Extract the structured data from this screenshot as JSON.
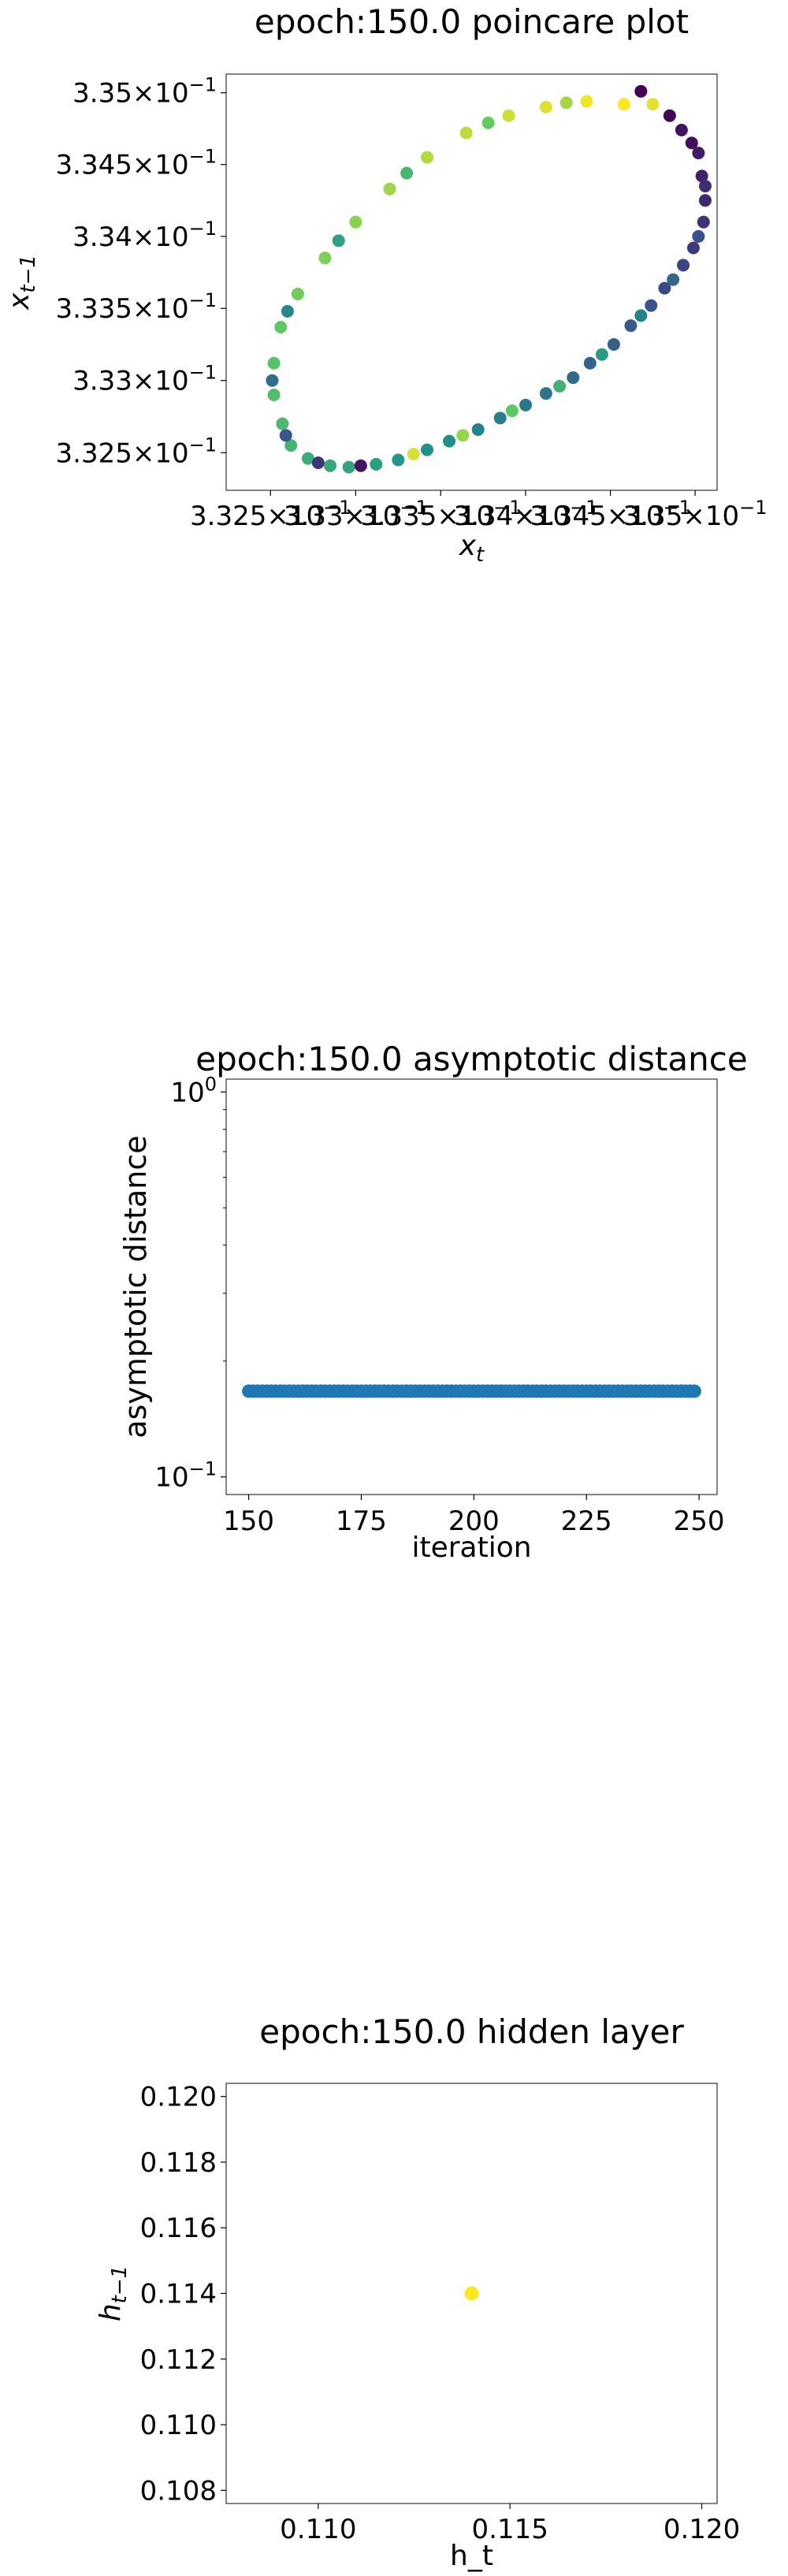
{
  "chart_data": [
    {
      "type": "scatter",
      "title": "epoch:150.0 poincare plot",
      "xlabel": "x",
      "xlabel_sub": "t",
      "ylabel": "x",
      "ylabel_sub": "t−1",
      "xscale": "log",
      "yscale": "log",
      "xlim": [
        0.33224,
        0.33513
      ],
      "ylim": [
        0.33224,
        0.33513
      ],
      "xticks": [
        {
          "value": 0.3325,
          "mant": "3.325",
          "exp": "−1"
        },
        {
          "value": 0.333,
          "mant": "3.33",
          "exp": "−1"
        },
        {
          "value": 0.3335,
          "mant": "3.335",
          "exp": "−1"
        },
        {
          "value": 0.334,
          "mant": "3.34",
          "exp": "−1"
        },
        {
          "value": 0.3345,
          "mant": "3.345",
          "exp": "−1"
        },
        {
          "value": 0.335,
          "mant": "3.35",
          "exp": "−1"
        }
      ],
      "yticks": [
        {
          "value": 0.3325,
          "mant": "3.325",
          "exp": "−1"
        },
        {
          "value": 0.333,
          "mant": "3.33",
          "exp": "−1"
        },
        {
          "value": 0.3335,
          "mant": "3.335",
          "exp": "−1"
        },
        {
          "value": 0.334,
          "mant": "3.34",
          "exp": "−1"
        },
        {
          "value": 0.3345,
          "mant": "3.345",
          "exp": "−1"
        },
        {
          "value": 0.335,
          "mant": "3.35",
          "exp": "−1"
        }
      ],
      "tick_times_sign": "×",
      "tick_base": "10",
      "colormap": "viridis",
      "points": [
        {
          "x": 0.33468,
          "y": 0.33501,
          "c": 0.0
        },
        {
          "x": 0.33492,
          "y": 0.33474,
          "c": 0.05
        },
        {
          "x": 0.33504,
          "y": 0.33442,
          "c": 0.1
        },
        {
          "x": 0.33505,
          "y": 0.3341,
          "c": 0.15
        },
        {
          "x": 0.33493,
          "y": 0.3338,
          "c": 0.2
        },
        {
          "x": 0.33474,
          "y": 0.33352,
          "c": 0.25
        },
        {
          "x": 0.33452,
          "y": 0.33325,
          "c": 0.3
        },
        {
          "x": 0.33428,
          "y": 0.33302,
          "c": 0.35
        },
        {
          "x": 0.334,
          "y": 0.33283,
          "c": 0.4
        },
        {
          "x": 0.33372,
          "y": 0.33266,
          "c": 0.45
        },
        {
          "x": 0.33342,
          "y": 0.33252,
          "c": 0.5
        },
        {
          "x": 0.33312,
          "y": 0.33242,
          "c": 0.55
        },
        {
          "x": 0.33285,
          "y": 0.33241,
          "c": 0.6
        },
        {
          "x": 0.33262,
          "y": 0.33255,
          "c": 0.65
        },
        {
          "x": 0.33252,
          "y": 0.3329,
          "c": 0.7
        },
        {
          "x": 0.33256,
          "y": 0.33337,
          "c": 0.75
        },
        {
          "x": 0.33282,
          "y": 0.33385,
          "c": 0.8
        },
        {
          "x": 0.3332,
          "y": 0.33433,
          "c": 0.85
        },
        {
          "x": 0.33365,
          "y": 0.33472,
          "c": 0.9
        },
        {
          "x": 0.33412,
          "y": 0.3349,
          "c": 0.95
        },
        {
          "x": 0.33458,
          "y": 0.33492,
          "c": 1.0
        },
        {
          "x": 0.33485,
          "y": 0.33484,
          "c": 0.02
        },
        {
          "x": 0.33502,
          "y": 0.33458,
          "c": 0.08
        },
        {
          "x": 0.33506,
          "y": 0.33425,
          "c": 0.12
        },
        {
          "x": 0.33499,
          "y": 0.33392,
          "c": 0.18
        },
        {
          "x": 0.33482,
          "y": 0.33364,
          "c": 0.22
        },
        {
          "x": 0.33462,
          "y": 0.33338,
          "c": 0.28
        },
        {
          "x": 0.33438,
          "y": 0.33312,
          "c": 0.32
        },
        {
          "x": 0.33412,
          "y": 0.33291,
          "c": 0.38
        },
        {
          "x": 0.33385,
          "y": 0.33274,
          "c": 0.42
        },
        {
          "x": 0.33355,
          "y": 0.33258,
          "c": 0.48
        },
        {
          "x": 0.33325,
          "y": 0.33245,
          "c": 0.52
        },
        {
          "x": 0.33296,
          "y": 0.3324,
          "c": 0.58
        },
        {
          "x": 0.33272,
          "y": 0.33246,
          "c": 0.62
        },
        {
          "x": 0.33257,
          "y": 0.3327,
          "c": 0.68
        },
        {
          "x": 0.33252,
          "y": 0.33312,
          "c": 0.72
        },
        {
          "x": 0.33266,
          "y": 0.3336,
          "c": 0.78
        },
        {
          "x": 0.333,
          "y": 0.3341,
          "c": 0.82
        },
        {
          "x": 0.33342,
          "y": 0.33455,
          "c": 0.88
        },
        {
          "x": 0.3339,
          "y": 0.33484,
          "c": 0.92
        },
        {
          "x": 0.33436,
          "y": 0.33494,
          "c": 0.98
        },
        {
          "x": 0.33498,
          "y": 0.33465,
          "c": 0.04
        },
        {
          "x": 0.33506,
          "y": 0.33435,
          "c": 0.14
        },
        {
          "x": 0.33502,
          "y": 0.334,
          "c": 0.24
        },
        {
          "x": 0.33487,
          "y": 0.3337,
          "c": 0.34
        },
        {
          "x": 0.33468,
          "y": 0.33345,
          "c": 0.44
        },
        {
          "x": 0.33445,
          "y": 0.33318,
          "c": 0.54
        },
        {
          "x": 0.3342,
          "y": 0.33296,
          "c": 0.64
        },
        {
          "x": 0.33392,
          "y": 0.33279,
          "c": 0.74
        },
        {
          "x": 0.33363,
          "y": 0.33262,
          "c": 0.84
        },
        {
          "x": 0.33334,
          "y": 0.33249,
          "c": 0.94
        },
        {
          "x": 0.33303,
          "y": 0.33241,
          "c": 0.06
        },
        {
          "x": 0.33278,
          "y": 0.33243,
          "c": 0.16
        },
        {
          "x": 0.33259,
          "y": 0.33262,
          "c": 0.26
        },
        {
          "x": 0.33251,
          "y": 0.333,
          "c": 0.36
        },
        {
          "x": 0.3326,
          "y": 0.33348,
          "c": 0.46
        },
        {
          "x": 0.3329,
          "y": 0.33397,
          "c": 0.56
        },
        {
          "x": 0.3333,
          "y": 0.33444,
          "c": 0.66
        },
        {
          "x": 0.33378,
          "y": 0.33479,
          "c": 0.76
        },
        {
          "x": 0.33424,
          "y": 0.33493,
          "c": 0.86
        },
        {
          "x": 0.33475,
          "y": 0.33492,
          "c": 0.96
        }
      ]
    },
    {
      "type": "scatter",
      "title": "epoch:150.0 asymptotic distance",
      "xlabel": "iteration",
      "ylabel": "asymptotic distance",
      "xscale": "linear",
      "yscale": "log",
      "xlim": [
        145,
        254
      ],
      "ylim": [
        0.09,
        1.08
      ],
      "xticks": [
        150,
        175,
        200,
        225,
        250
      ],
      "yticks": [
        {
          "value": 1,
          "base": "10",
          "exp": "0"
        },
        {
          "value": 0.1,
          "base": "10",
          "exp": "−1"
        }
      ],
      "color": "#1f77b4",
      "series": [
        {
          "x_start": 150,
          "x_end": 249,
          "step": 1,
          "y": 0.167
        }
      ]
    },
    {
      "type": "scatter",
      "title": "epoch:150.0 hidden layer",
      "xlabel": "h_t",
      "ylabel": "h",
      "ylabel_sub": "t−1",
      "xscale": "linear",
      "yscale": "linear",
      "xlim": [
        0.1076,
        0.1204
      ],
      "ylim": [
        0.1076,
        0.1204
      ],
      "xticks": [
        0.11,
        0.115,
        0.12
      ],
      "yticks": [
        0.108,
        0.11,
        0.112,
        0.114,
        0.116,
        0.118,
        0.12
      ],
      "tick_format_decimals": 3,
      "points": [
        {
          "x": 0.114,
          "y": 0.114,
          "color": "#fde725"
        }
      ]
    }
  ]
}
